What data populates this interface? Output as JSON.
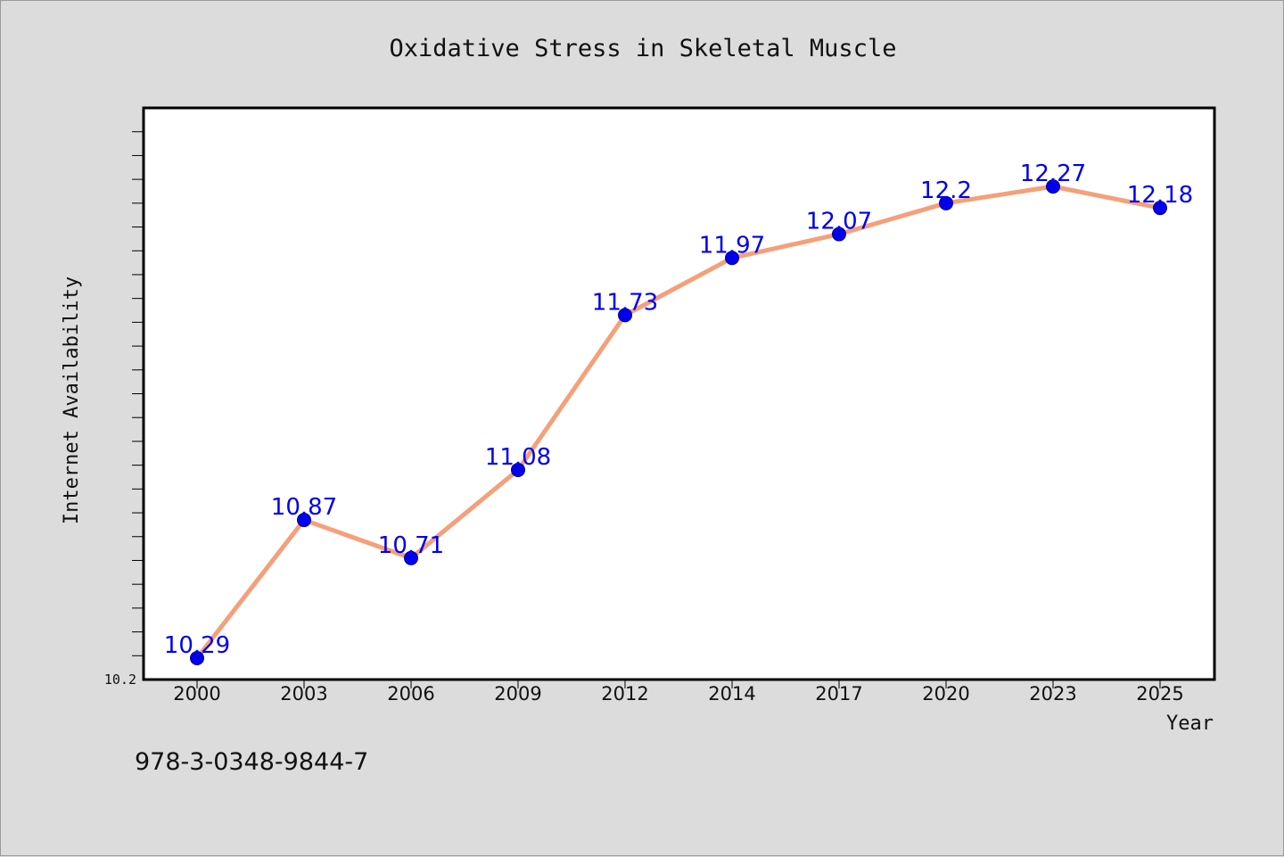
{
  "chart_data": {
    "type": "line",
    "title": "Oxidative Stress in Skeletal Muscle",
    "xlabel": "Year",
    "ylabel": "Internet Availability",
    "categories": [
      "2000",
      "2003",
      "2006",
      "2009",
      "2012",
      "2014",
      "2017",
      "2020",
      "2023",
      "2025"
    ],
    "series": [
      {
        "values": [
          10.29,
          10.87,
          10.71,
          11.08,
          11.73,
          11.97,
          12.07,
          12.2,
          12.27,
          12.18
        ],
        "value_labels": [
          "10.29",
          "10.87",
          "10.71",
          "11.08",
          "11.73",
          "11.97",
          "12.07",
          "12.2",
          "12.27",
          "12.18"
        ]
      }
    ],
    "ylim": [
      10.2,
      12.6
    ],
    "yticks_labeled": [
      "10.2"
    ],
    "grid": false,
    "colors": {
      "line": "#f4a07a",
      "marker": "#0000ee",
      "label": "#0000ee",
      "plot_background": "#ffffff",
      "figure_background": "#dcdcdc"
    }
  },
  "footer": {
    "isbn": "978-3-0348-9844-7"
  }
}
